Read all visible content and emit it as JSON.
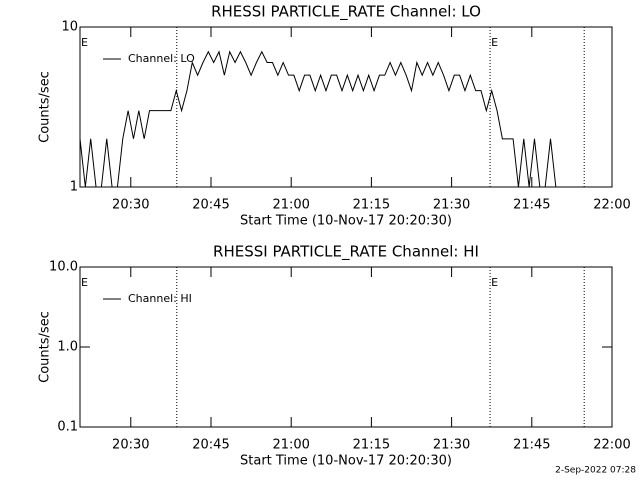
{
  "chart_data": [
    {
      "type": "line",
      "title": "RHESSI PARTICLE_RATE Channel: LO",
      "xlabel": "Start Time (10-Nov-17 20:20:30)",
      "ylabel": "Counts/sec",
      "x": [
        0,
        1,
        2,
        3,
        4,
        5,
        6,
        7,
        8,
        9,
        10,
        11,
        12,
        13,
        14,
        15,
        16,
        17,
        18,
        19,
        20,
        21,
        22,
        23,
        24,
        25,
        26,
        27,
        28,
        29,
        30,
        31,
        32,
        33,
        34,
        35,
        36,
        37,
        38,
        39,
        40,
        41,
        42,
        43,
        44,
        45,
        46,
        47,
        48,
        49,
        50,
        51,
        52,
        53,
        54,
        55,
        56,
        57,
        58,
        59,
        60,
        61,
        62,
        63,
        64,
        65,
        66,
        67,
        68,
        69,
        70,
        71,
        72,
        73,
        74,
        75,
        76,
        77,
        78,
        79,
        80,
        81,
        82,
        83,
        84,
        85,
        86,
        87,
        88,
        89
      ],
      "series": [
        {
          "name": "Channel: LO",
          "color": "#000000",
          "values": [
            2,
            1,
            2,
            1,
            1,
            2,
            1,
            1,
            2,
            3,
            2,
            3,
            2,
            3,
            3,
            3,
            3,
            3,
            4,
            3,
            4,
            6,
            5,
            6,
            7,
            6,
            7,
            5,
            7,
            6,
            7,
            6,
            5,
            6,
            7,
            6,
            6,
            5,
            6,
            5,
            5,
            4,
            5,
            5,
            4,
            5,
            4,
            5,
            5,
            4,
            5,
            4,
            5,
            4,
            5,
            4,
            5,
            5,
            6,
            5,
            6,
            5,
            4,
            6,
            5,
            6,
            5,
            6,
            5,
            4,
            5,
            5,
            4,
            5,
            4,
            4,
            3,
            4,
            3,
            2,
            2,
            2,
            1,
            2,
            1,
            2,
            1,
            1,
            2,
            1
          ]
        }
      ],
      "xlim": [
        0,
        99.5
      ],
      "ylim": [
        1,
        10
      ],
      "log_y": true,
      "xticks": [
        {
          "value": 9.5,
          "label": "20:30"
        },
        {
          "value": 24.5,
          "label": "20:45"
        },
        {
          "value": 39.5,
          "label": "21:00"
        },
        {
          "value": 54.5,
          "label": "21:15"
        },
        {
          "value": 69.5,
          "label": "21:30"
        },
        {
          "value": 84.5,
          "label": "21:45"
        },
        {
          "value": 99.5,
          "label": "22:00"
        }
      ],
      "yticks": [
        1,
        10
      ],
      "vlines": [
        18.1,
        76.7,
        94.3
      ],
      "legend": "upper left",
      "annotations": [
        {
          "text": "E",
          "x": 0
        },
        {
          "text": "E",
          "x": 76.7
        }
      ]
    },
    {
      "type": "line",
      "title": "RHESSI PARTICLE_RATE Channel: HI",
      "xlabel": "Start Time (10-Nov-17 20:20:30)",
      "ylabel": "Counts/sec",
      "x": [],
      "series": [
        {
          "name": "Channel: HI",
          "color": "#000000",
          "values": []
        }
      ],
      "xlim": [
        0,
        99.5
      ],
      "ylim": [
        0.1,
        10
      ],
      "log_y": true,
      "xticks": [
        {
          "value": 9.5,
          "label": "20:30"
        },
        {
          "value": 24.5,
          "label": "20:45"
        },
        {
          "value": 39.5,
          "label": "21:00"
        },
        {
          "value": 54.5,
          "label": "21:15"
        },
        {
          "value": 69.5,
          "label": "21:30"
        },
        {
          "value": 84.5,
          "label": "21:45"
        },
        {
          "value": 99.5,
          "label": "22:00"
        }
      ],
      "yticks": [
        0.1,
        {
          "value": 1,
          "label": "1.0"
        },
        {
          "value": 10,
          "label": "10.0"
        }
      ],
      "vlines": [
        18.1,
        76.7,
        94.3
      ],
      "legend": "upper left",
      "annotations": [
        {
          "text": "E",
          "x": 0
        },
        {
          "text": "E",
          "x": 76.7
        }
      ]
    }
  ],
  "footer": "2-Sep-2022 07:28"
}
